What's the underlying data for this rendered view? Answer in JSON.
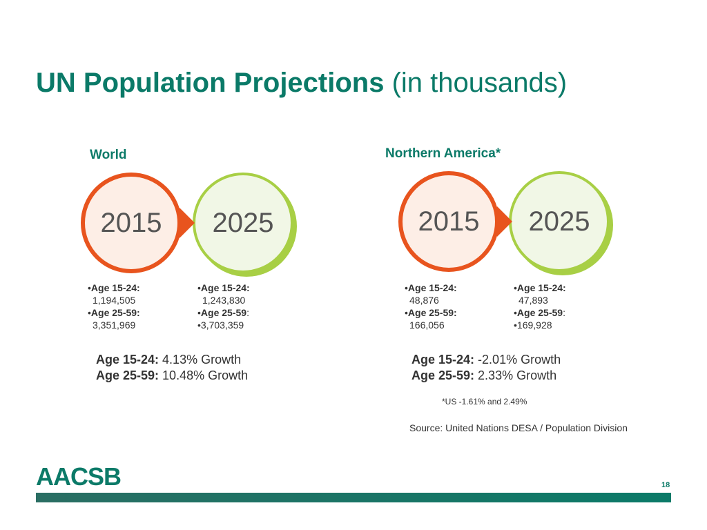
{
  "title": {
    "bold": "UN Population Projections",
    "light": " (in thousands)"
  },
  "regions": [
    {
      "label": "World",
      "year_a": "2015",
      "year_b": "2025",
      "stats_a": {
        "l1_label": "Age 15-24:",
        "l1_value": "1,194,505",
        "l2_label": "Age 25-59:",
        "l2_value": "3,351,969"
      },
      "stats_b": {
        "l1_label": "Age 15-24:",
        "l1_value": "1,243,830",
        "l2_label": "Age 25-59",
        "l2_colon": ":",
        "l2_value": "3,703,359"
      },
      "growth": {
        "g1_label": "Age 15-24:",
        "g1_value": " 4.13% Growth",
        "g2_label": "Age 25-59:",
        "g2_value": " 10.48% Growth"
      }
    },
    {
      "label": "Northern America*",
      "year_a": "2015",
      "year_b": "2025",
      "stats_a": {
        "l1_label": "Age 15-24:",
        "l1_value": "48,876",
        "l2_label": "Age 25-59:",
        "l2_value": "166,056"
      },
      "stats_b": {
        "l1_label": "Age 15-24:",
        "l1_value": "47,893",
        "l2_label": "Age 25-59",
        "l2_colon": ":",
        "l2_value": "169,928"
      },
      "growth": {
        "g1_label": "Age 15-24:",
        "g1_value": " -2.01% Growth",
        "g2_label": "Age 25-59:",
        "g2_value": " 2.33% Growth"
      }
    }
  ],
  "footnote": "*US -1.61% and 2.49%",
  "source": "Source: United Nations DESA / Population Division",
  "logo": "AACSB",
  "page_number": "18",
  "colors": {
    "brand": "#0b7a68",
    "orange": "#e8541e",
    "green": "#a8cf45"
  }
}
